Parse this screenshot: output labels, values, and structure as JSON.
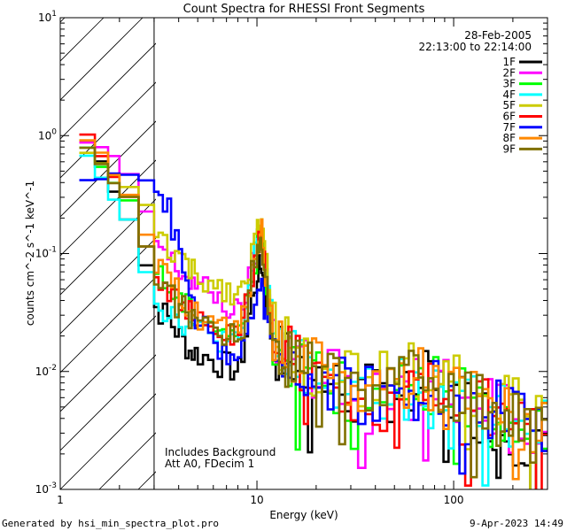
{
  "footer": {
    "generated_by": "Generated by hsi_min_spectra_plot.pro",
    "timestamp": "9-Apr-2023 14:49"
  },
  "chart_data": {
    "type": "line",
    "title": "Count Spectra for RHESSI Front Segments",
    "xlabel": "Energy (keV)",
    "ylabel": "counts cm^-2 s^-1 keV^-1",
    "xscale": "log",
    "yscale": "log",
    "xlim": [
      1,
      300
    ],
    "ylim": [
      0.001,
      10
    ],
    "x_tick_labels": [
      "1",
      "10",
      "100"
    ],
    "y_tick_labels": [
      "10^-3",
      "10^-2",
      "10^-1",
      "10^0",
      "10^1"
    ],
    "date": "28-Feb-2005",
    "time_range": "22:13:00 to 22:14:00",
    "hatched_region": [
      1,
      3
    ],
    "notes": [
      "Includes Background",
      "Att A0, FDecim 1"
    ],
    "energy_kev": [
      1.25,
      1.5,
      1.75,
      2.0,
      2.5,
      3.0,
      3.5,
      4.0,
      4.5,
      5.0,
      6.0,
      7.0,
      8.0,
      9.0,
      10.0,
      10.5,
      11.0,
      12.0,
      15.0,
      20.0,
      30.0,
      50.0,
      70.0,
      100.0,
      150.0,
      200.0,
      300.0
    ],
    "series": [
      {
        "name": "1F",
        "color": "#000000",
        "values": [
          0.9,
          0.6,
          0.35,
          0.2,
          0.08,
          0.035,
          0.028,
          0.02,
          0.015,
          0.014,
          0.012,
          0.011,
          0.01,
          0.03,
          0.07,
          0.08,
          0.04,
          0.015,
          0.012,
          0.009,
          0.006,
          0.007,
          0.008,
          0.006,
          0.004,
          0.003,
          0.002
        ]
      },
      {
        "name": "2F",
        "color": "#ff00ff",
        "values": [
          0.85,
          0.8,
          0.65,
          0.45,
          0.22,
          0.13,
          0.09,
          0.07,
          0.06,
          0.05,
          0.045,
          0.035,
          0.03,
          0.06,
          0.13,
          0.16,
          0.07,
          0.02,
          0.013,
          0.01,
          0.007,
          0.008,
          0.009,
          0.007,
          0.005,
          0.004,
          0.003
        ]
      },
      {
        "name": "3F",
        "color": "#00ff00",
        "values": [
          0.75,
          0.55,
          0.4,
          0.28,
          0.12,
          0.07,
          0.05,
          0.04,
          0.033,
          0.028,
          0.025,
          0.022,
          0.02,
          0.05,
          0.12,
          0.15,
          0.06,
          0.018,
          0.012,
          0.009,
          0.006,
          0.008,
          0.008,
          0.006,
          0.005,
          0.004,
          0.003
        ]
      },
      {
        "name": "4F",
        "color": "#00ffff",
        "values": [
          0.7,
          0.45,
          0.3,
          0.2,
          0.07,
          0.04,
          0.032,
          0.028,
          0.025,
          0.022,
          0.02,
          0.018,
          0.016,
          0.05,
          0.14,
          0.17,
          0.07,
          0.02,
          0.012,
          0.008,
          0.006,
          0.007,
          0.008,
          0.007,
          0.005,
          0.004,
          0.003
        ]
      },
      {
        "name": "5F",
        "color": "#cccc00",
        "values": [
          0.72,
          0.6,
          0.45,
          0.35,
          0.25,
          0.15,
          0.11,
          0.09,
          0.07,
          0.06,
          0.055,
          0.05,
          0.045,
          0.08,
          0.16,
          0.18,
          0.08,
          0.022,
          0.014,
          0.011,
          0.008,
          0.009,
          0.01,
          0.008,
          0.006,
          0.005,
          0.004
        ]
      },
      {
        "name": "6F",
        "color": "#ff0000",
        "values": [
          1.0,
          0.7,
          0.45,
          0.3,
          0.12,
          0.07,
          0.05,
          0.04,
          0.03,
          0.025,
          0.022,
          0.02,
          0.018,
          0.05,
          0.12,
          0.14,
          0.06,
          0.018,
          0.012,
          0.009,
          0.006,
          0.007,
          0.008,
          0.006,
          0.005,
          0.004,
          0.003
        ]
      },
      {
        "name": "7F",
        "color": "#0000ff",
        "values": [
          0.4,
          0.45,
          0.5,
          0.48,
          0.42,
          0.38,
          0.22,
          0.1,
          0.04,
          0.025,
          0.018,
          0.015,
          0.012,
          0.025,
          0.045,
          0.05,
          0.03,
          0.014,
          0.011,
          0.009,
          0.007,
          0.007,
          0.007,
          0.006,
          0.005,
          0.004,
          0.003
        ]
      },
      {
        "name": "8F",
        "color": "#ff8800",
        "values": [
          0.95,
          0.68,
          0.45,
          0.3,
          0.14,
          0.08,
          0.055,
          0.045,
          0.035,
          0.03,
          0.026,
          0.022,
          0.02,
          0.055,
          0.13,
          0.15,
          0.065,
          0.02,
          0.013,
          0.01,
          0.007,
          0.009,
          0.009,
          0.007,
          0.005,
          0.004,
          0.003
        ]
      },
      {
        "name": "9F",
        "color": "#807000",
        "values": [
          0.8,
          0.55,
          0.4,
          0.3,
          0.12,
          0.065,
          0.045,
          0.035,
          0.03,
          0.026,
          0.023,
          0.02,
          0.018,
          0.05,
          0.12,
          0.14,
          0.06,
          0.018,
          0.012,
          0.009,
          0.007,
          0.008,
          0.008,
          0.006,
          0.005,
          0.004,
          0.003
        ]
      }
    ]
  }
}
